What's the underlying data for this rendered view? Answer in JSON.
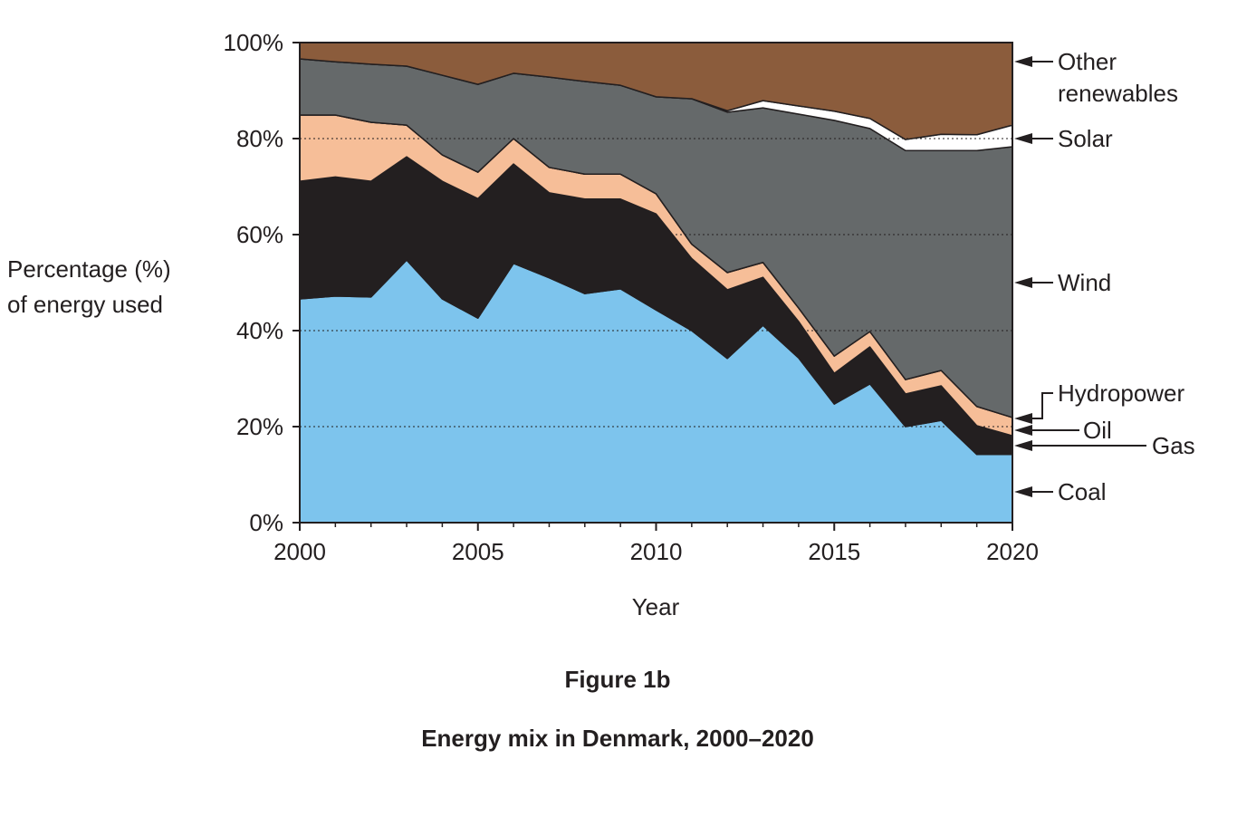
{
  "chart_data": {
    "type": "area",
    "stacked": true,
    "caption_label": "Figure 1b",
    "title": "Energy mix in Denmark, 2000–2020",
    "xlabel": "Year",
    "ylabel": [
      "Percentage (%)",
      "of energy used"
    ],
    "xlim": [
      2000,
      2020
    ],
    "ylim": [
      0,
      100
    ],
    "xticks": [
      2000,
      2005,
      2010,
      2015,
      2020
    ],
    "yticks": [
      "0%",
      "20%",
      "40%",
      "60%",
      "80%",
      "100%"
    ],
    "ytick_values": [
      0,
      20,
      40,
      60,
      80,
      100
    ],
    "grid": "dotted horizontal at 20, 40, 60, 80",
    "legend_placement": "right, labels with arrows",
    "x": [
      2000,
      2001,
      2002,
      2003,
      2004,
      2005,
      2006,
      2007,
      2008,
      2009,
      2010,
      2011,
      2012,
      2013,
      2014,
      2015,
      2016,
      2017,
      2018,
      2019,
      2020
    ],
    "series": [
      {
        "name": "Coal",
        "color": "#7dc4ed",
        "values": [
          46.6,
          47.2,
          47.0,
          54.7,
          46.6,
          42.6,
          54.0,
          51.0,
          47.7,
          48.7,
          44.3,
          40.0,
          34.2,
          41.1,
          34.3,
          24.7,
          28.9,
          20.0,
          21.3,
          14.2,
          14.2
        ]
      },
      {
        "name": "Gas",
        "color": "#231f20",
        "values": [
          24.5,
          24.8,
          24.1,
          21.5,
          24.5,
          24.9,
          20.7,
          17.7,
          19.7,
          18.7,
          20.0,
          15.0,
          14.3,
          10.0,
          7.6,
          6.4,
          7.7,
          6.8,
          7.2,
          6.0,
          3.9
        ]
      },
      {
        "name": "Oil",
        "color": "#f6be98",
        "values": [
          13.8,
          12.9,
          12.3,
          6.6,
          5.5,
          5.5,
          5.3,
          5.3,
          5.2,
          5.2,
          4.2,
          3.0,
          3.6,
          3.1,
          2.8,
          3.6,
          3.2,
          3.0,
          3.2,
          4.0,
          3.8
        ]
      },
      {
        "name": "Hydropower",
        "color": "#231f20",
        "values": [
          0,
          0,
          0,
          0,
          0,
          0,
          0,
          0,
          0,
          0,
          0,
          0,
          0,
          0,
          0,
          0,
          0,
          0,
          0,
          0,
          0
        ]
      },
      {
        "name": "Wind",
        "color": "#65696a",
        "values": [
          11.7,
          11.1,
          12.1,
          12.3,
          16.6,
          18.3,
          13.6,
          18.8,
          19.3,
          18.5,
          20.2,
          30.3,
          33.4,
          32.2,
          40.4,
          49.1,
          42.3,
          47.7,
          45.8,
          53.3,
          56.4
        ]
      },
      {
        "name": "Solar",
        "color": "#ffffff",
        "values": [
          0,
          0,
          0,
          0,
          0,
          0,
          0,
          0,
          0,
          0,
          0,
          0,
          0.3,
          1.5,
          1.7,
          1.9,
          2.1,
          2.3,
          3.4,
          3.3,
          4.5
        ]
      },
      {
        "name": "Other renewables",
        "color": "#8b5c3c",
        "values": [
          3.4,
          4.0,
          4.5,
          4.9,
          6.8,
          8.7,
          6.4,
          7.2,
          8.1,
          8.9,
          11.3,
          11.7,
          14.2,
          12.1,
          13.2,
          14.3,
          15.8,
          20.2,
          19.1,
          19.2,
          17.2
        ]
      }
    ],
    "legend_labels": {
      "other_line1": "Other",
      "other_line2": "renewables",
      "solar": "Solar",
      "wind": "Wind",
      "hydropower": "Hydropower",
      "oil": "Oil",
      "gas": "Gas",
      "coal": "Coal"
    }
  }
}
